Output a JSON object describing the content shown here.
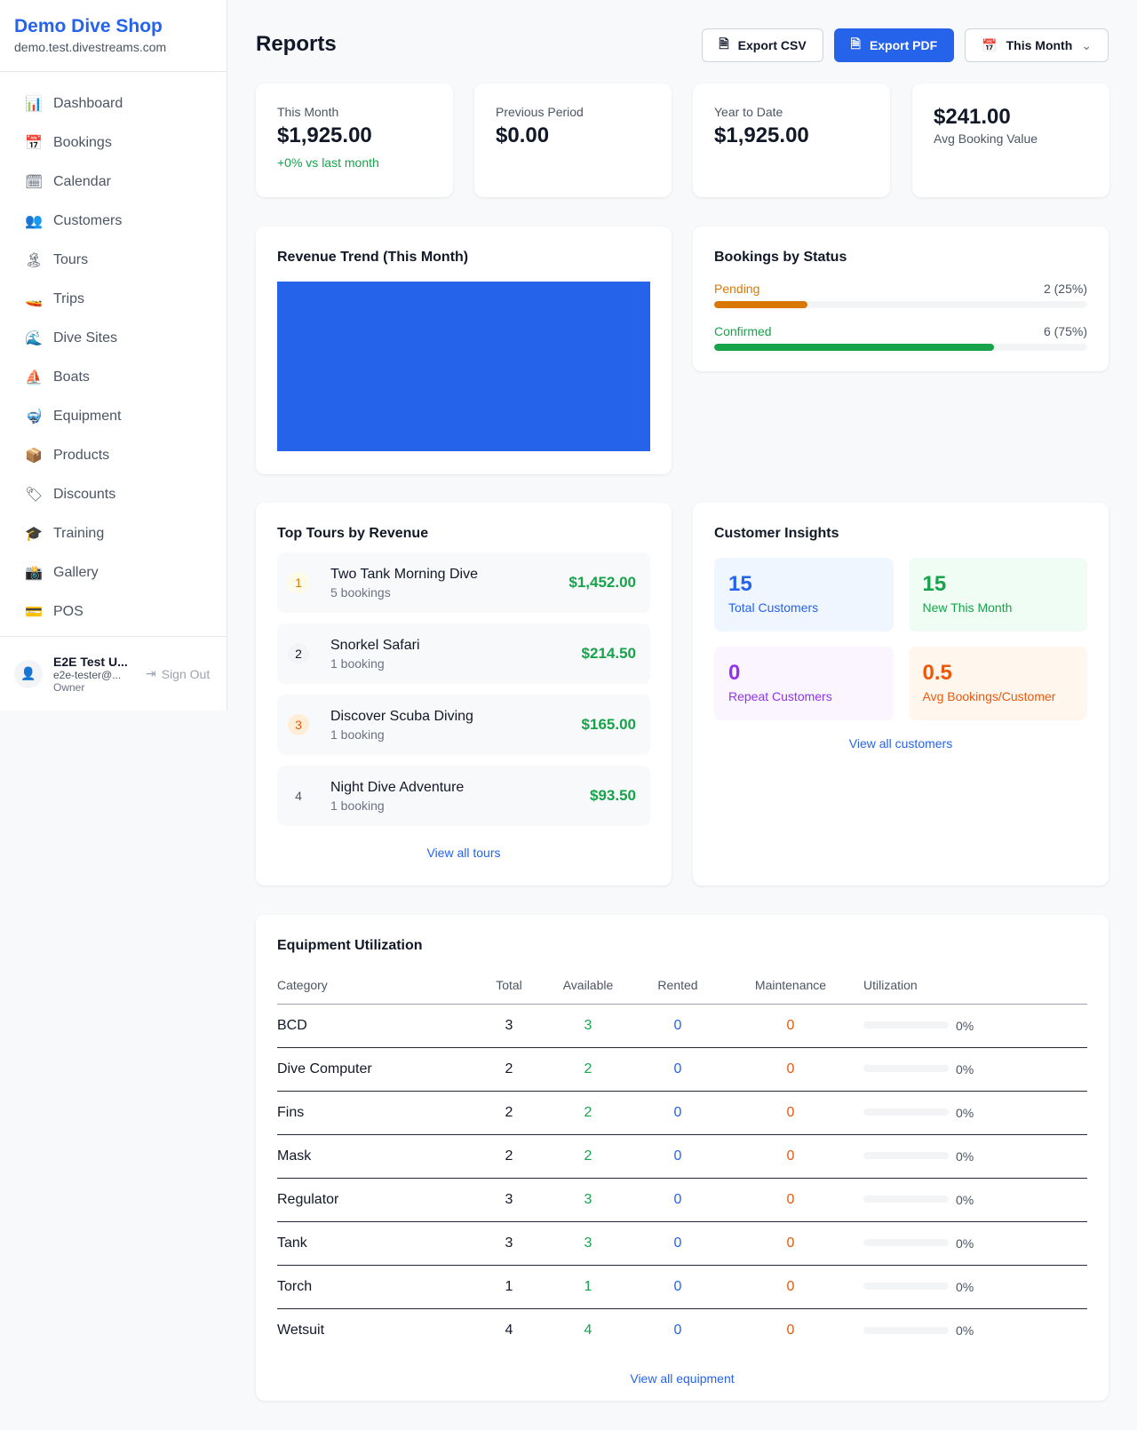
{
  "sidebar": {
    "brand": "Demo Dive Shop",
    "domain": "demo.test.divestreams.com",
    "items": [
      {
        "label": "Dashboard",
        "icon": "📊"
      },
      {
        "label": "Bookings",
        "icon": "📅"
      },
      {
        "label": "Calendar",
        "icon": "🗓"
      },
      {
        "label": "Customers",
        "icon": "👥"
      },
      {
        "label": "Tours",
        "icon": "🏝"
      },
      {
        "label": "Trips",
        "icon": "🚤"
      },
      {
        "label": "Dive Sites",
        "icon": "🌊"
      },
      {
        "label": "Boats",
        "icon": "⛵"
      },
      {
        "label": "Equipment",
        "icon": "🤿"
      },
      {
        "label": "Products",
        "icon": "📦"
      },
      {
        "label": "Discounts",
        "icon": "🏷"
      },
      {
        "label": "Training",
        "icon": "🎓"
      },
      {
        "label": "Gallery",
        "icon": "📸"
      },
      {
        "label": "POS",
        "icon": "💳"
      }
    ],
    "user": {
      "name": "E2E Test U...",
      "email": "e2e-tester@...",
      "role": "Owner",
      "sign_out": "Sign Out"
    }
  },
  "header": {
    "title": "Reports",
    "export_csv": "Export CSV",
    "export_pdf": "Export PDF",
    "period": "This Month"
  },
  "stats": [
    {
      "label": "This Month",
      "value": "$1,925.00",
      "sub": "+0% vs last month"
    },
    {
      "label": "Previous Period",
      "value": "$0.00"
    },
    {
      "label": "Year to Date",
      "value": "$1,925.00"
    },
    {
      "value": "$241.00",
      "label": "Avg Booking Value"
    }
  ],
  "revenue": {
    "title": "Revenue Trend (This Month)",
    "color": "#2563eb"
  },
  "bookings_status": {
    "title": "Bookings by Status",
    "items": [
      {
        "label": "Pending",
        "value": "2 (25%)",
        "percent": 25,
        "color": "#d97706"
      },
      {
        "label": "Confirmed",
        "value": "6 (75%)",
        "percent": 75,
        "color": "#16a34a"
      }
    ]
  },
  "top_tours": {
    "title": "Top Tours by Revenue",
    "link": "View all tours",
    "items": [
      {
        "rank": "1",
        "name": "Two Tank Morning Dive",
        "bookings": "5 bookings",
        "amount": "$1,452.00"
      },
      {
        "rank": "2",
        "name": "Snorkel Safari",
        "bookings": "1 booking",
        "amount": "$214.50"
      },
      {
        "rank": "3",
        "name": "Discover Scuba Diving",
        "bookings": "1 booking",
        "amount": "$165.00"
      },
      {
        "rank": "4",
        "name": "Night Dive Adventure",
        "bookings": "1 booking",
        "amount": "$93.50"
      }
    ]
  },
  "customers": {
    "title": "Customer Insights",
    "link": "View all customers",
    "tiles": [
      {
        "value": "15",
        "label": "Total Customers"
      },
      {
        "value": "15",
        "label": "New This Month"
      },
      {
        "value": "0",
        "label": "Repeat Customers"
      },
      {
        "value": "0.5",
        "label": "Avg Bookings/Customer"
      }
    ]
  },
  "equipment": {
    "title": "Equipment Utilization",
    "link": "View all equipment",
    "columns": [
      "Category",
      "Total",
      "Available",
      "Rented",
      "Maintenance",
      "Utilization"
    ],
    "rows": [
      {
        "category": "BCD",
        "total": "3",
        "available": "3",
        "rented": "0",
        "maintenance": "0",
        "utilization": "0%"
      },
      {
        "category": "Dive Computer",
        "total": "2",
        "available": "2",
        "rented": "0",
        "maintenance": "0",
        "utilization": "0%"
      },
      {
        "category": "Fins",
        "total": "2",
        "available": "2",
        "rented": "0",
        "maintenance": "0",
        "utilization": "0%"
      },
      {
        "category": "Mask",
        "total": "2",
        "available": "2",
        "rented": "0",
        "maintenance": "0",
        "utilization": "0%"
      },
      {
        "category": "Regulator",
        "total": "3",
        "available": "3",
        "rented": "0",
        "maintenance": "0",
        "utilization": "0%"
      },
      {
        "category": "Tank",
        "total": "3",
        "available": "3",
        "rented": "0",
        "maintenance": "0",
        "utilization": "0%"
      },
      {
        "category": "Torch",
        "total": "1",
        "available": "1",
        "rented": "0",
        "maintenance": "0",
        "utilization": "0%"
      },
      {
        "category": "Wetsuit",
        "total": "4",
        "available": "4",
        "rented": "0",
        "maintenance": "0",
        "utilization": "0%"
      }
    ]
  }
}
